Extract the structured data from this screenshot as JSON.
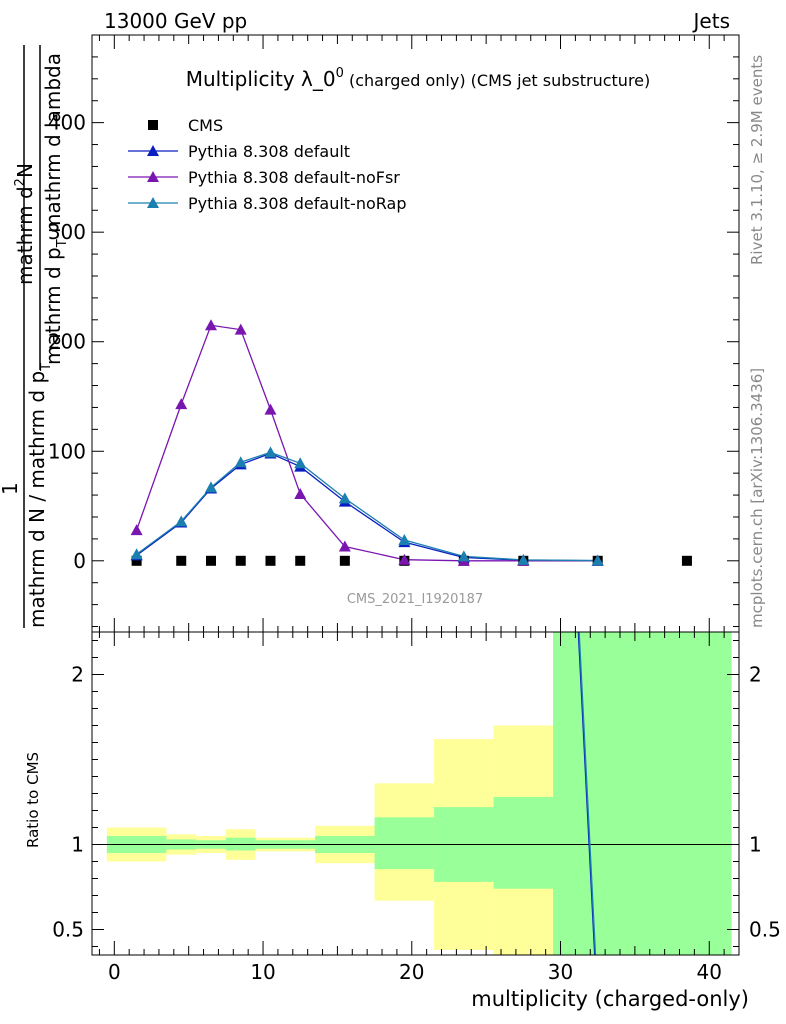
{
  "header": {
    "energy_label": "13000 GeV pp",
    "process_label": "Jets",
    "rivet_label": "Rivet 3.1.10, ≥ 2.9M events",
    "mcplots_label": "mcplots.cern.ch [arXiv:1306.3436]"
  },
  "chart_data": [
    {
      "type": "line",
      "panel": "main",
      "title_main": "Multiplicity λ_0",
      "title_sup": "0",
      "title_sub": " (charged only) (CMS jet substructure)",
      "watermark": "CMS_2021_I1920187",
      "ylabel_numerator": "mathrm d",
      "ylabel_numerator_sup": "2",
      "ylabel_numerator_N": "N",
      "ylabel_denominator_a": "mathrm d p",
      "ylabel_denominator_sub": "T",
      "ylabel_denominator_b": " mathrm d lambda",
      "ylabel_prefactor": "1",
      "ylabel_prefactor_den": "mathrm d N / mathrm d p",
      "ylabel_prefactor_den_sub": "T",
      "xlim": [
        -1.5,
        42
      ],
      "ylim": [
        -65,
        480
      ],
      "yticks": [
        0,
        100,
        200,
        300,
        400
      ],
      "ytick_labels": [
        "0",
        "100",
        "200",
        "300",
        "400"
      ],
      "legend": "top-left",
      "series": [
        {
          "name": "CMS",
          "color": "#000000",
          "marker": "square",
          "x": [
            1.5,
            4.5,
            6.5,
            8.5,
            10.5,
            12.5,
            15.5,
            19.5,
            23.5,
            27.5,
            32.5,
            38.5
          ],
          "y": [
            0,
            0,
            0,
            0,
            0,
            0,
            0,
            0,
            0,
            0,
            0,
            0
          ]
        },
        {
          "name": "Pythia 8.308 default",
          "color": "#0a1fc2",
          "marker": "triangle",
          "x": [
            1.5,
            4.5,
            6.5,
            8.5,
            10.5,
            12.5,
            15.5,
            19.5,
            23.5,
            27.5,
            32.5
          ],
          "y": [
            5,
            35,
            66,
            88,
            98,
            86,
            54,
            17,
            3,
            0.5,
            0.1
          ]
        },
        {
          "name": "Pythia 8.308 default-noFsr",
          "color": "#7a16b0",
          "marker": "triangle",
          "x": [
            1.5,
            4.5,
            6.5,
            8.5,
            10.5,
            12.5,
            15.5,
            19.5,
            23.5,
            27.5,
            32.5
          ],
          "y": [
            28,
            143,
            215,
            211,
            138,
            61,
            13,
            1,
            0,
            0,
            0
          ]
        },
        {
          "name": "Pythia 8.308 default-noRap",
          "color": "#1b7fb0",
          "marker": "triangle",
          "x": [
            1.5,
            4.5,
            6.5,
            8.5,
            10.5,
            12.5,
            15.5,
            19.5,
            23.5,
            27.5,
            32.5
          ],
          "y": [
            6,
            36,
            67,
            90,
            99,
            89,
            57,
            19,
            4,
            0.8,
            0.2
          ]
        }
      ]
    },
    {
      "type": "area",
      "panel": "ratio",
      "ylabel": "Ratio to CMS",
      "xlabel": "multiplicity (charged-only)",
      "xlim": [
        -1.5,
        42
      ],
      "ylim": [
        0.35,
        2.25
      ],
      "xticks": [
        0,
        10,
        20,
        30,
        40
      ],
      "xtick_labels": [
        "0",
        "10",
        "20",
        "30",
        "40"
      ],
      "yticks": [
        0.5,
        1,
        2
      ],
      "ytick_labels": [
        "0.5",
        "1",
        "2"
      ],
      "bins": [
        {
          "lo": -0.5,
          "hi": 3.5,
          "y_lo": 0.9,
          "y_hi": 1.1,
          "g_lo": 0.95,
          "g_hi": 1.05
        },
        {
          "lo": 3.5,
          "hi": 5.5,
          "y_lo": 0.94,
          "y_hi": 1.06,
          "g_lo": 0.97,
          "g_hi": 1.03
        },
        {
          "lo": 5.5,
          "hi": 7.5,
          "y_lo": 0.95,
          "y_hi": 1.05,
          "g_lo": 0.975,
          "g_hi": 1.025
        },
        {
          "lo": 7.5,
          "hi": 9.5,
          "y_lo": 0.91,
          "y_hi": 1.09,
          "g_lo": 0.965,
          "g_hi": 1.04
        },
        {
          "lo": 9.5,
          "hi": 13.5,
          "y_lo": 0.96,
          "y_hi": 1.04,
          "g_lo": 0.975,
          "g_hi": 1.025
        },
        {
          "lo": 13.5,
          "hi": 17.5,
          "y_lo": 0.89,
          "y_hi": 1.11,
          "g_lo": 0.95,
          "g_hi": 1.05
        },
        {
          "lo": 17.5,
          "hi": 21.5,
          "y_lo": 0.67,
          "y_hi": 1.36,
          "g_lo": 0.855,
          "g_hi": 1.16
        },
        {
          "lo": 21.5,
          "hi": 25.5,
          "y_lo": 0.38,
          "y_hi": 1.62,
          "g_lo": 0.78,
          "g_hi": 1.22
        },
        {
          "lo": 25.5,
          "hi": 29.5,
          "y_lo": 0.35,
          "y_hi": 1.7,
          "g_lo": 0.74,
          "g_hi": 1.28
        },
        {
          "lo": 29.5,
          "hi": 41.5,
          "y_lo": 0.35,
          "y_hi": 2.25,
          "g_lo": 0.35,
          "g_hi": 2.25
        }
      ],
      "series": [
        {
          "name": "Pythia 8.308 default",
          "color": "#0a1fc2",
          "x": [
            31.2,
            32.3
          ],
          "y": [
            2.25,
            0.35
          ]
        },
        {
          "name": "Pythia 8.308 default-noRap",
          "color": "#1b7fb0",
          "x": [
            31.25,
            32.35
          ],
          "y": [
            2.25,
            0.35
          ]
        }
      ]
    }
  ]
}
